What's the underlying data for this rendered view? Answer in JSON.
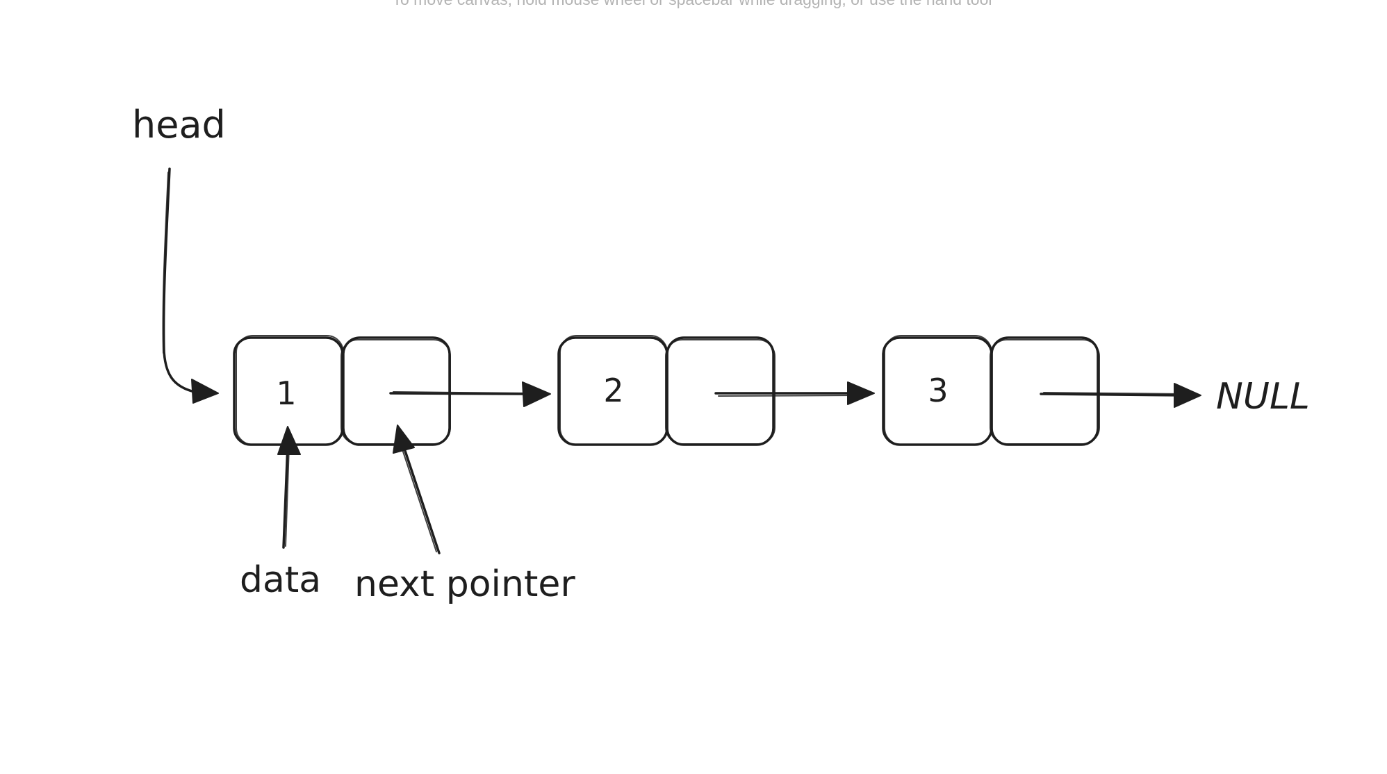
{
  "canvas": {
    "hint": "To move canvas, hold mouse wheel or spacebar while dragging, or use the hand tool"
  },
  "labels": {
    "head": "head",
    "data": "data",
    "next_pointer": "next pointer",
    "null": "NULL"
  },
  "nodes": [
    {
      "value": "1"
    },
    {
      "value": "2"
    },
    {
      "value": "3"
    }
  ],
  "colors": {
    "stroke": "#1e1e1e",
    "background": "#ffffff",
    "hint": "#b3b3b3"
  }
}
